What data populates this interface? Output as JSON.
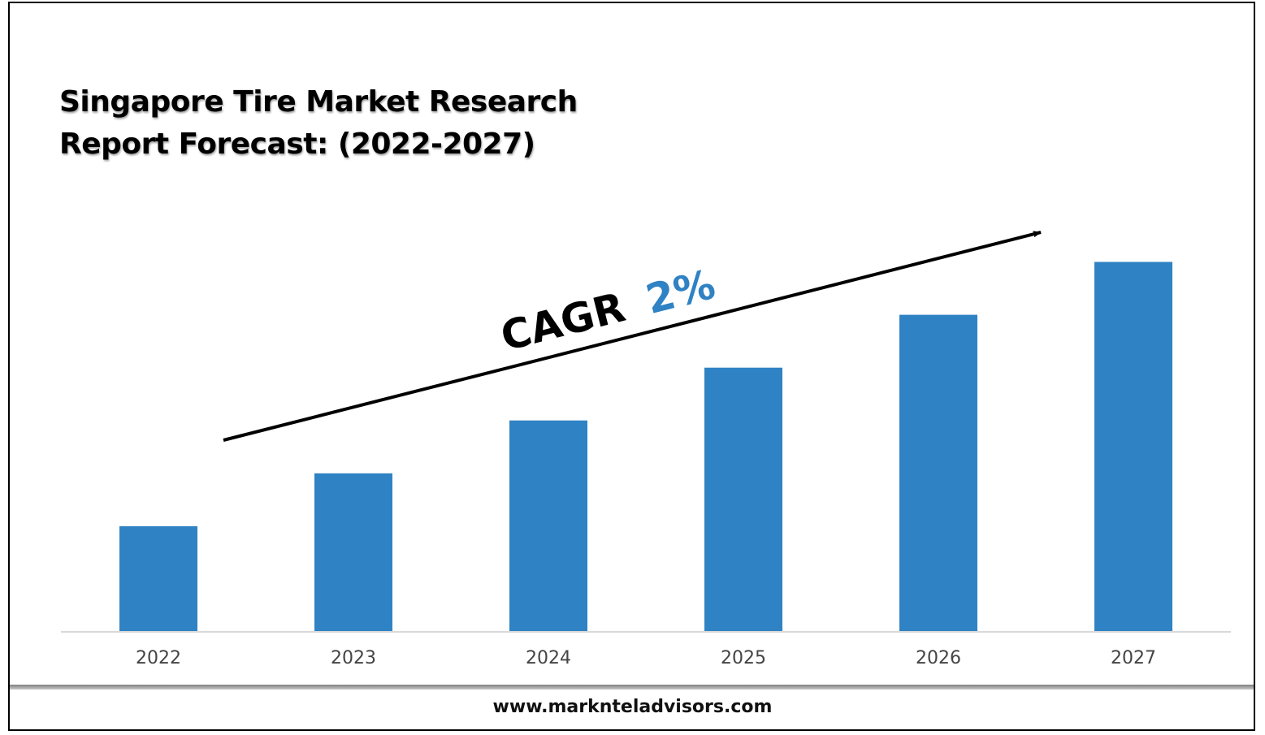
{
  "title_lines": [
    "Singapore Tire Market Research",
    "Report Forecast: (2022-2027)"
  ],
  "annotation": {
    "prefix": "CAGR",
    "value": "2%",
    "value_color": "#2f82c3",
    "arrow_color": "#000000"
  },
  "footer": {
    "url": "www.marknteladvisors.com"
  },
  "chart_data": {
    "type": "bar",
    "categories": [
      "2022",
      "2023",
      "2024",
      "2025",
      "2026",
      "2027"
    ],
    "values": [
      2.0,
      3.0,
      4.0,
      5.0,
      6.0,
      7.0
    ],
    "title": "Singapore Tire Market Research Report Forecast: (2022-2027)",
    "xlabel": "",
    "ylabel": "",
    "ylim": [
      0,
      7.5
    ],
    "bar_color": "#2f82c3",
    "axis_color": "#d9d9d9",
    "grid": false,
    "legend": "none",
    "y_axis_visible": false
  }
}
